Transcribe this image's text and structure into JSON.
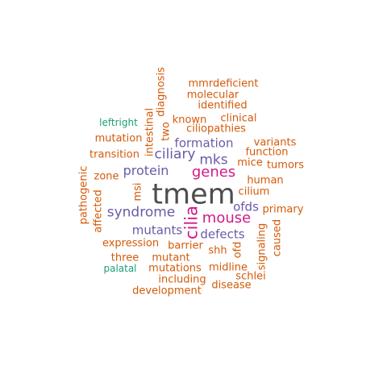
{
  "colors": {
    "dark": "#4d4d4d",
    "magenta": "#d11a85",
    "purple": "#6a5aa8",
    "orange": "#d45a08",
    "green": "#1b9e77"
  },
  "words": [
    {
      "text": "tmem",
      "color": "#4d4d4d"
    },
    {
      "text": "genes",
      "color": "#d11a85"
    },
    {
      "text": "mouse",
      "color": "#d11a85"
    },
    {
      "text": "cilia",
      "color": "#d11a85"
    },
    {
      "text": "syndrome",
      "color": "#6a5aa8"
    },
    {
      "text": "protein",
      "color": "#6a5aa8"
    },
    {
      "text": "mks",
      "color": "#6a5aa8"
    },
    {
      "text": "ciliary",
      "color": "#6a5aa8"
    },
    {
      "text": "formation",
      "color": "#6a5aa8"
    },
    {
      "text": "mutants",
      "color": "#6a5aa8"
    },
    {
      "text": "defects",
      "color": "#6a5aa8"
    },
    {
      "text": "ofds",
      "color": "#6a5aa8"
    },
    {
      "text": "mmrdeficient",
      "color": "#d45a08"
    },
    {
      "text": "molecular",
      "color": "#d45a08"
    },
    {
      "text": "identified",
      "color": "#d45a08"
    },
    {
      "text": "known",
      "color": "#d45a08"
    },
    {
      "text": "clinical",
      "color": "#d45a08"
    },
    {
      "text": "ciliopathies",
      "color": "#d45a08"
    },
    {
      "text": "leftright",
      "color": "#1b9e77"
    },
    {
      "text": "mutation",
      "color": "#d45a08"
    },
    {
      "text": "variants",
      "color": "#d45a08"
    },
    {
      "text": "transition",
      "color": "#d45a08"
    },
    {
      "text": "function",
      "color": "#d45a08"
    },
    {
      "text": "mice",
      "color": "#d45a08"
    },
    {
      "text": "tumors",
      "color": "#d45a08"
    },
    {
      "text": "zone",
      "color": "#d45a08"
    },
    {
      "text": "human",
      "color": "#d45a08"
    },
    {
      "text": "cilium",
      "color": "#d45a08"
    },
    {
      "text": "primary",
      "color": "#d45a08"
    },
    {
      "text": "expression",
      "color": "#d45a08"
    },
    {
      "text": "barrier",
      "color": "#d45a08"
    },
    {
      "text": "shh",
      "color": "#d45a08"
    },
    {
      "text": "three",
      "color": "#d45a08"
    },
    {
      "text": "mutant",
      "color": "#d45a08"
    },
    {
      "text": "palatal",
      "color": "#1b9e77"
    },
    {
      "text": "mutations",
      "color": "#d45a08"
    },
    {
      "text": "midline",
      "color": "#d45a08"
    },
    {
      "text": "including",
      "color": "#d45a08"
    },
    {
      "text": "schlei",
      "color": "#d45a08"
    },
    {
      "text": "disease",
      "color": "#d45a08"
    },
    {
      "text": "development",
      "color": "#d45a08"
    },
    {
      "text": "diagnosis",
      "color": "#d45a08"
    },
    {
      "text": "intestinal",
      "color": "#d45a08"
    },
    {
      "text": "two",
      "color": "#d45a08"
    },
    {
      "text": "msi",
      "color": "#d45a08"
    },
    {
      "text": "pathogenic",
      "color": "#d45a08"
    },
    {
      "text": "affected",
      "color": "#d45a08"
    },
    {
      "text": "ofd",
      "color": "#d45a08"
    },
    {
      "text": "signaling",
      "color": "#d45a08"
    },
    {
      "text": "caused",
      "color": "#d45a08"
    }
  ]
}
